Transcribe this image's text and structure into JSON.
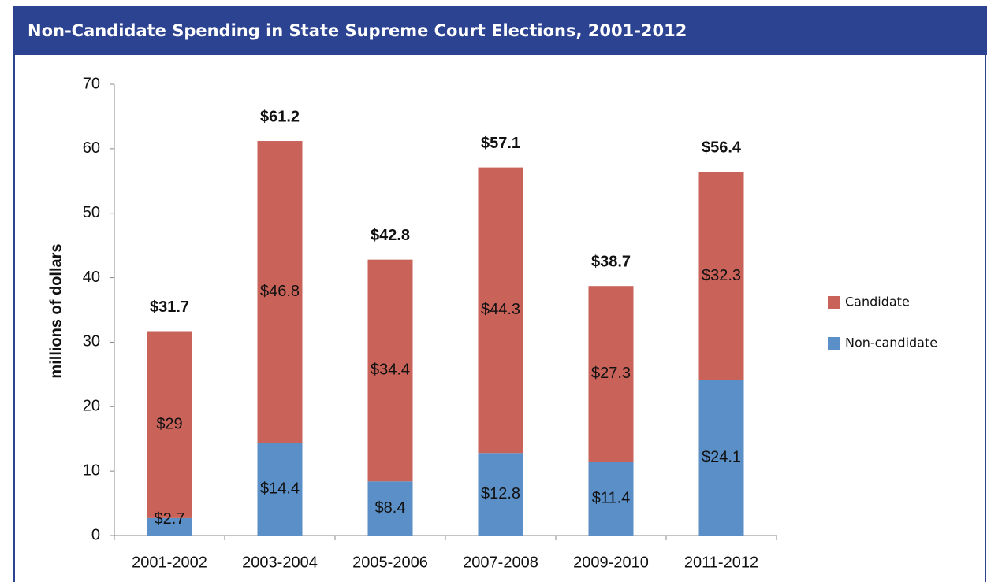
{
  "chart_data": {
    "type": "stacked_bar",
    "title": "Non-Candidate Spending in State Supreme Court Elections, 2001-2012",
    "y_label": "millions of dollars",
    "categories": [
      "2001-2002",
      "2003-2004",
      "2005-2006",
      "2007-2008",
      "2009-2010",
      "2011-2012"
    ],
    "series": [
      {
        "name": "Non-candidate",
        "color": "#5b8fc7",
        "values": [
          2.7,
          14.4,
          8.4,
          12.8,
          11.4,
          24.1
        ],
        "value_labels": [
          "$2.7",
          "$14.4",
          "$8.4",
          "$12.8",
          "$11.4",
          "$24.1"
        ]
      },
      {
        "name": "Candidate",
        "color": "#c9635a",
        "values": [
          29,
          46.8,
          34.4,
          44.3,
          27.3,
          32.3
        ],
        "value_labels": [
          "$29",
          "$46.8",
          "$34.4",
          "$44.3",
          "$27.3",
          "$32.3"
        ]
      }
    ],
    "totals": [
      31.7,
      61.2,
      42.8,
      57.1,
      38.7,
      56.4
    ],
    "total_labels": [
      "$31.7",
      "$61.2",
      "$42.8",
      "$57.1",
      "$38.7",
      "$56.4"
    ],
    "ylim": [
      0,
      70
    ],
    "yticks": [
      0,
      10,
      20,
      30,
      40,
      50,
      60,
      70
    ],
    "grid": false,
    "legend": "right"
  }
}
